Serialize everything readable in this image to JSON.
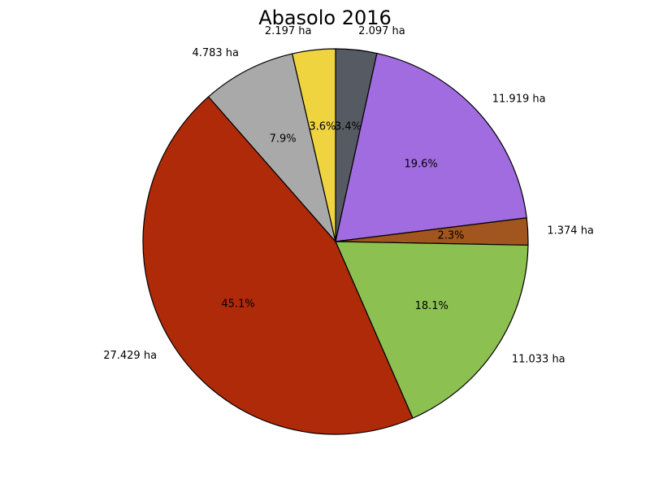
{
  "chart_data": {
    "type": "pie",
    "title": "Abasolo 2016",
    "start_angle_deg": 90,
    "direction": "clockwise",
    "slices": [
      {
        "label": "2.097 ha",
        "value": 2.097,
        "percent": "3.4%",
        "color": "#565a62"
      },
      {
        "label": "11.919 ha",
        "value": 11.919,
        "percent": "19.6%",
        "color": "#a06ce0"
      },
      {
        "label": "1.374 ha",
        "value": 1.374,
        "percent": "2.3%",
        "color": "#a0561e"
      },
      {
        "label": "11.033 ha",
        "value": 11.033,
        "percent": "18.1%",
        "color": "#8cc050"
      },
      {
        "label": "27.429 ha",
        "value": 27.429,
        "percent": "45.1%",
        "color": "#ae2a08"
      },
      {
        "label": "4.783 ha",
        "value": 4.783,
        "percent": "7.9%",
        "color": "#a8a9a8"
      },
      {
        "label": "2.197 ha",
        "value": 2.197,
        "percent": "3.6%",
        "color": "#efd440"
      }
    ]
  }
}
